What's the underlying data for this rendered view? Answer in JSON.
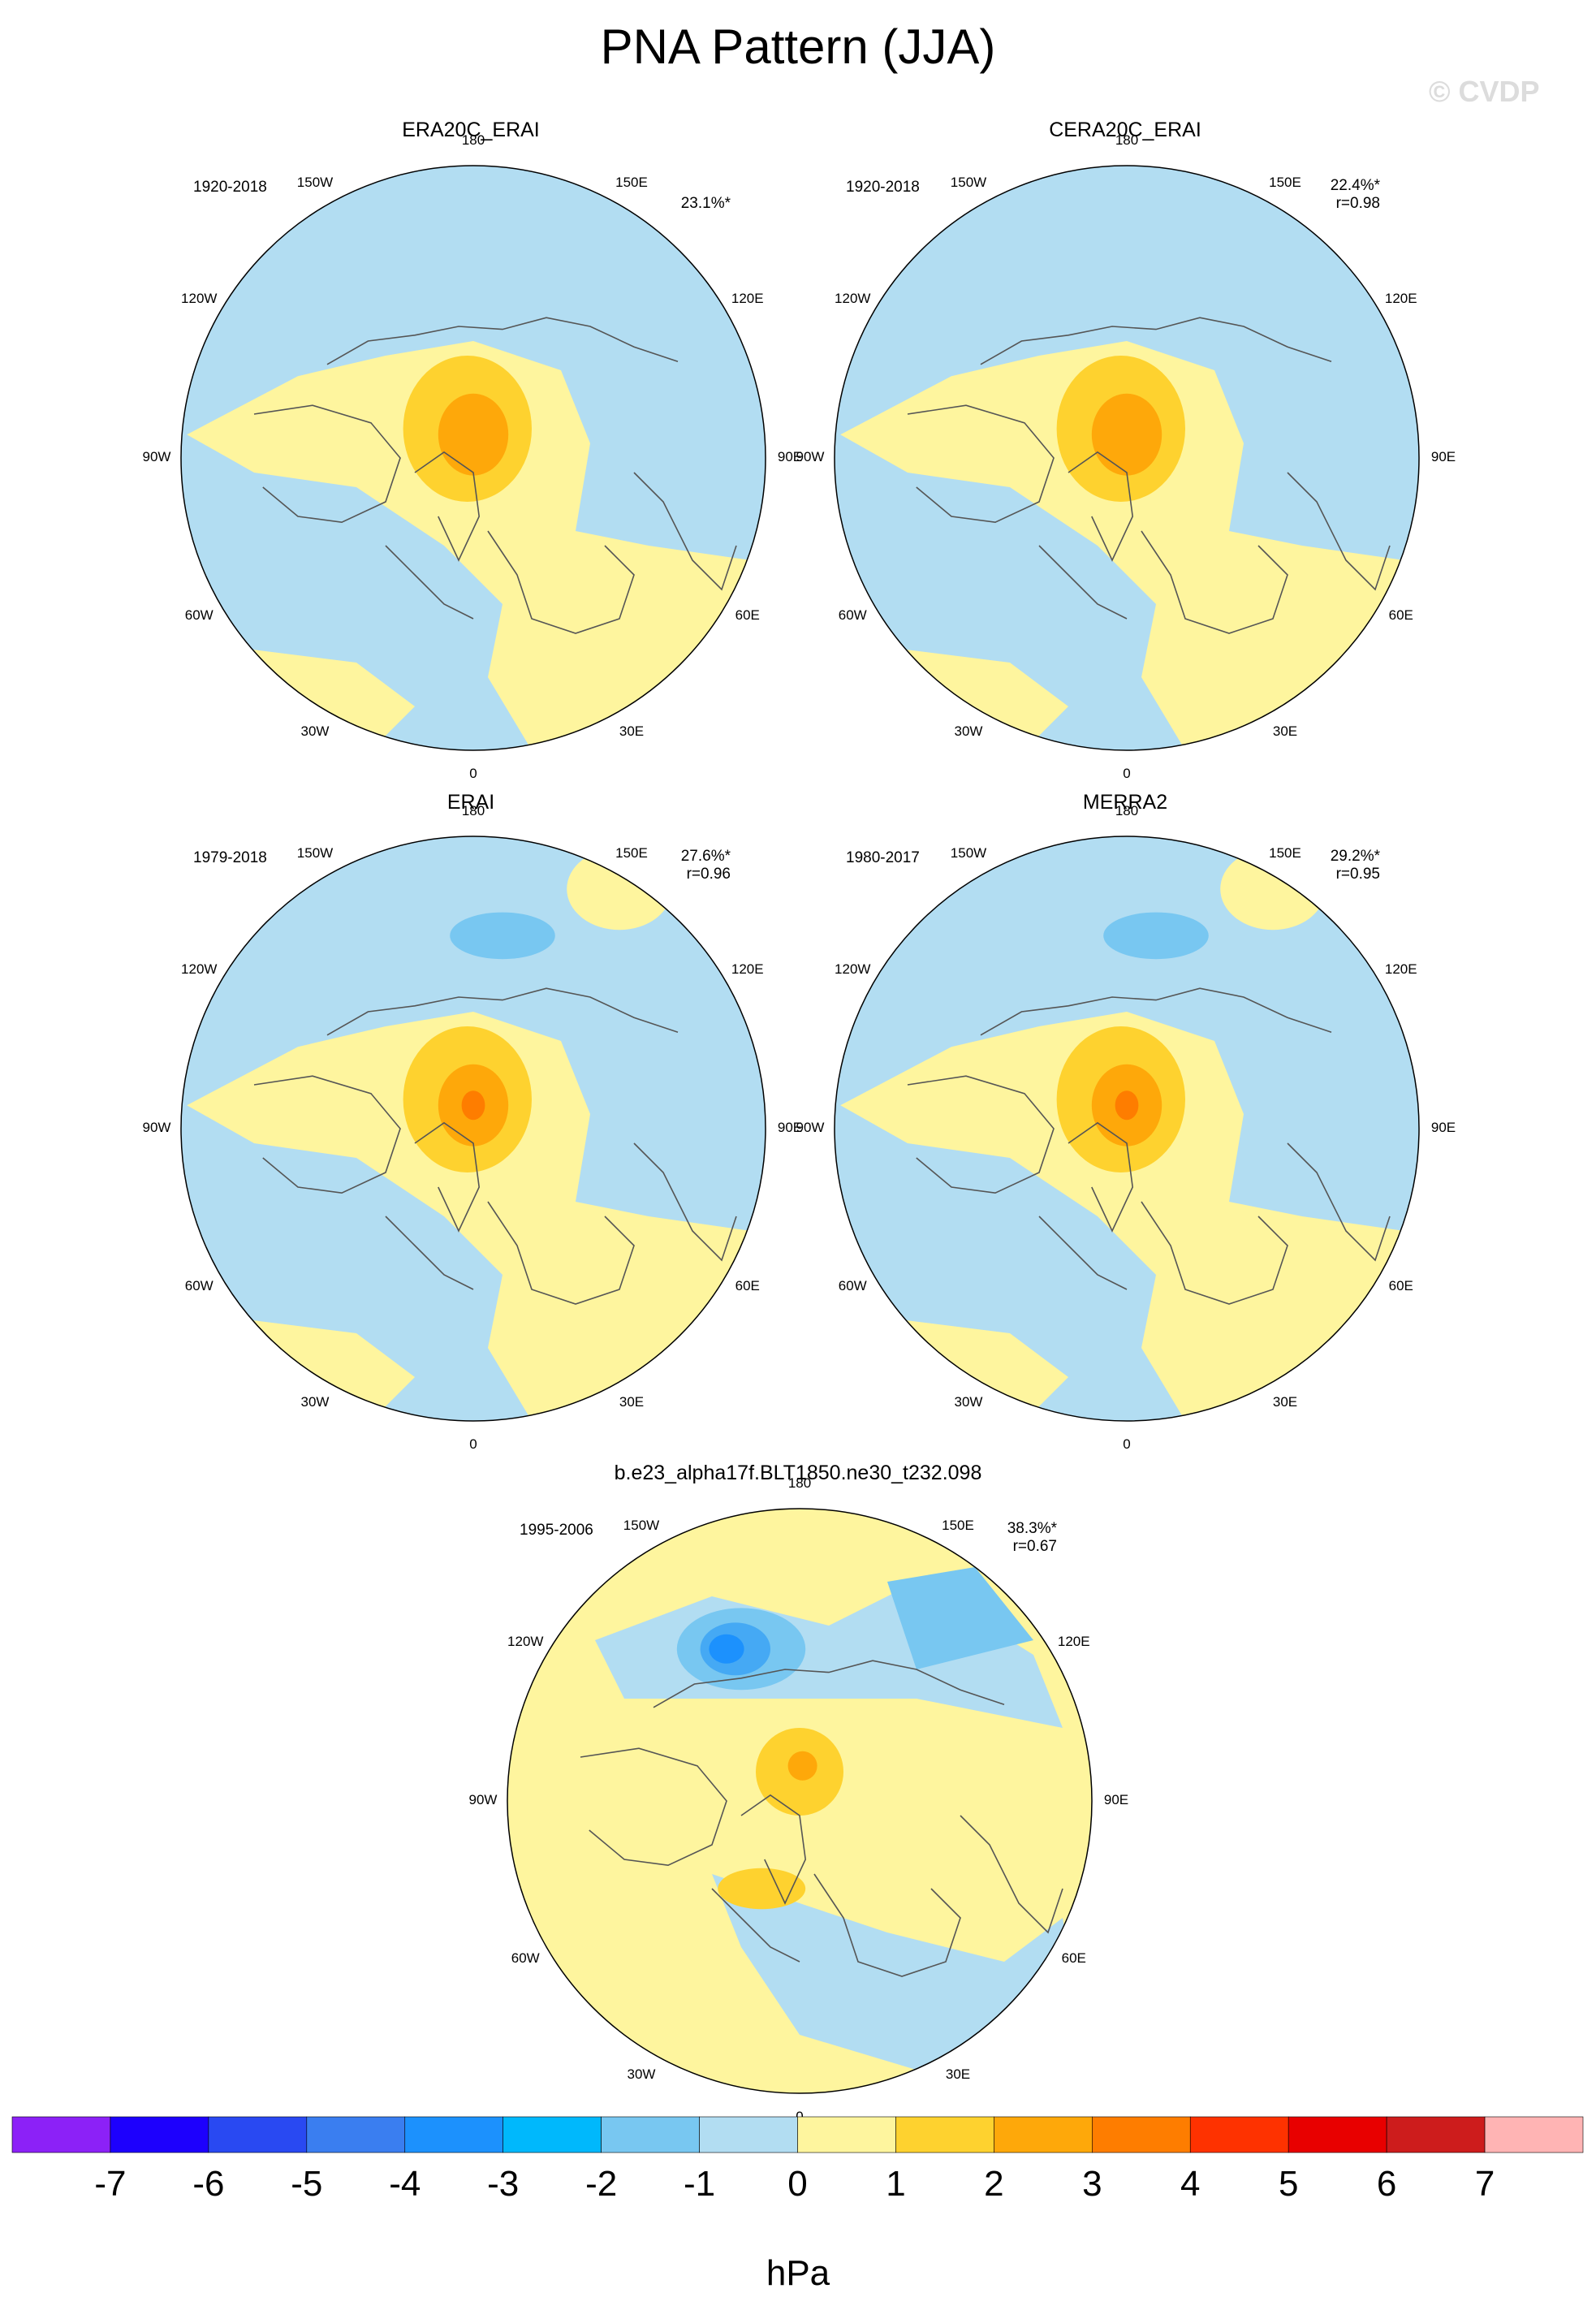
{
  "title": "PNA Pattern (JJA)",
  "watermark": "© CVDP",
  "colors": {
    "ocean_neg": "#b2ddf2",
    "pos1": "#fef59e",
    "pos2": "#fed22f",
    "pos3": "#fea80a",
    "pos4": "#fe7d00",
    "neg2": "#78c7f1",
    "neg3": "#45a9f4",
    "neg4": "#1c91fd",
    "coast": "#555555"
  },
  "panels": [
    {
      "id": "era20c",
      "title": "ERA20C_ERAI",
      "period": "1920-2018",
      "pct": "23.1%*",
      "r": "",
      "lon_labels": [
        "180",
        "150E",
        "120E",
        "90E",
        "60E",
        "30E",
        "0",
        "30W",
        "60W",
        "90W",
        "120W",
        "150W"
      ]
    },
    {
      "id": "cera20c",
      "title": "CERA20C_ERAI",
      "period": "1920-2018",
      "pct": "22.4%*",
      "r": "r=0.98",
      "lon_labels": [
        "180",
        "150E",
        "120E",
        "90E",
        "60E",
        "30E",
        "0",
        "30W",
        "60W",
        "90W",
        "120W",
        "150W"
      ]
    },
    {
      "id": "erai",
      "title": "ERAI",
      "period": "1979-2018",
      "pct": "27.6%*",
      "r": "r=0.96",
      "lon_labels": [
        "180",
        "150E",
        "120E",
        "90E",
        "60E",
        "30E",
        "0",
        "30W",
        "60W",
        "90W",
        "120W",
        "150W"
      ]
    },
    {
      "id": "merra2",
      "title": "MERRA2",
      "period": "1980-2017",
      "pct": "29.2%*",
      "r": "r=0.95",
      "lon_labels": [
        "180",
        "150E",
        "120E",
        "90E",
        "60E",
        "30E",
        "0",
        "30W",
        "60W",
        "90W",
        "120W",
        "150W"
      ]
    },
    {
      "id": "model",
      "title": "b.e23_alpha17f.BLT1850.ne30_t232.098",
      "period": "1995-2006",
      "pct": "38.3%*",
      "r": "r=0.67",
      "lon_labels": [
        "180",
        "150E",
        "120E",
        "90E",
        "60E",
        "30E",
        "0",
        "30W",
        "60W",
        "90W",
        "120W",
        "150W"
      ]
    }
  ],
  "colorbar": {
    "unit": "hPa",
    "labels": [
      "-7",
      "-6",
      "-5",
      "-4",
      "-3",
      "-2",
      "-1",
      "0",
      "1",
      "2",
      "3",
      "4",
      "5",
      "6",
      "7"
    ],
    "colors": [
      "#8c21f7",
      "#1d00fd",
      "#2949f2",
      "#3a7ef0",
      "#1c91fd",
      "#00b8fc",
      "#78c7f1",
      "#b2ddf2",
      "#fef59e",
      "#fed22f",
      "#fea80a",
      "#fe7d00",
      "#fe3200",
      "#e80000",
      "#cd1c1c",
      "#ffb4b4"
    ]
  }
}
